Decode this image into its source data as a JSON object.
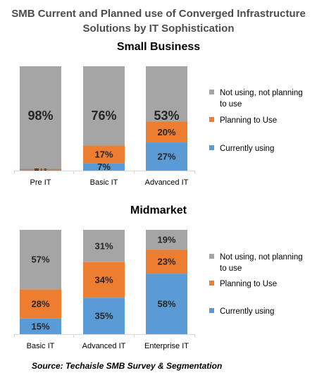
{
  "title": "SMB Current and Planned use of Converged Infrastructure Solutions by IT Sophistication",
  "title_lines": [
    "SMB Current and Planned use of Converged Infrastructure",
    "Solutions by IT Sophistication"
  ],
  "source": "Source: Techaisle SMB Survey & Segmentation",
  "colors": {
    "currently": "#5b9bd5",
    "planning": "#ed7d31",
    "not_using": "#a5a5a5"
  },
  "chart_data": [
    {
      "type": "bar",
      "stacked": true,
      "title": "Small Business",
      "categories": [
        "Pre IT",
        "Basic IT",
        "Advanced IT"
      ],
      "series": [
        {
          "name": "Currently using",
          "values": [
            1,
            7,
            27
          ],
          "labels": [
            "1%",
            "7%",
            "27%"
          ]
        },
        {
          "name": "Planning to Use",
          "values": [
            1,
            17,
            20
          ],
          "labels": [
            "1%",
            "17%",
            "20%"
          ]
        },
        {
          "name": "Not using, not planning to use",
          "values": [
            98,
            76,
            53
          ],
          "labels": [
            "98%",
            "76%",
            "53%"
          ]
        }
      ],
      "ylim": [
        0,
        100
      ],
      "legend_position": "right"
    },
    {
      "type": "bar",
      "stacked": true,
      "title": "Midmarket",
      "categories": [
        "Basic IT",
        "Advanced IT",
        "Enterprise IT"
      ],
      "series": [
        {
          "name": "Currently using",
          "values": [
            15,
            35,
            58
          ],
          "labels": [
            "15%",
            "35%",
            "58%"
          ]
        },
        {
          "name": "Planning to Use",
          "values": [
            28,
            34,
            23
          ],
          "labels": [
            "28%",
            "34%",
            "23%"
          ]
        },
        {
          "name": "Not using, not planning to use",
          "values": [
            57,
            31,
            19
          ],
          "labels": [
            "57%",
            "31%",
            "19%"
          ]
        }
      ],
      "ylim": [
        0,
        100
      ],
      "legend_position": "right"
    }
  ]
}
